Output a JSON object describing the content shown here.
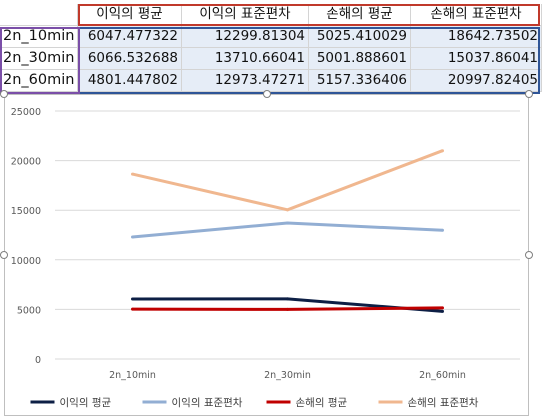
{
  "table": {
    "headers": [
      "",
      "이익의 평균",
      "이익의 표준편차",
      "손해의 평균",
      "손해의 표준편차"
    ],
    "rows": [
      [
        "2n_10min",
        "6047.477322",
        "12299.81304",
        "5025.410029",
        "18642.73502"
      ],
      [
        "2n_30min",
        "6066.532688",
        "13710.66041",
        "5001.888601",
        "15037.86041"
      ],
      [
        "2n_60min",
        "4801.447802",
        "12973.47271",
        "5157.336406",
        "20997.82405"
      ]
    ]
  },
  "chart_data": {
    "type": "line",
    "categories": [
      "2n_10min",
      "2n_30min",
      "2n_60min"
    ],
    "series": [
      {
        "name": "이익의 평균",
        "color": "#0d1f45",
        "values": [
          6047.477322,
          6066.532688,
          4801.447802
        ]
      },
      {
        "name": "이익의 표준편차",
        "color": "#92aed3",
        "values": [
          12299.81304,
          13710.66041,
          12973.47271
        ]
      },
      {
        "name": "손해의 평균",
        "color": "#c00000",
        "values": [
          5025.410029,
          5001.888601,
          5157.336406
        ]
      },
      {
        "name": "손해의 표준편차",
        "color": "#f0b78f",
        "values": [
          18642.73502,
          15037.86041,
          20997.82405
        ]
      }
    ],
    "y_ticks": [
      "0",
      "5000",
      "10000",
      "15000",
      "20000",
      "25000"
    ],
    "ylim": [
      0,
      25000
    ],
    "grid": true,
    "legend": "bottom"
  }
}
